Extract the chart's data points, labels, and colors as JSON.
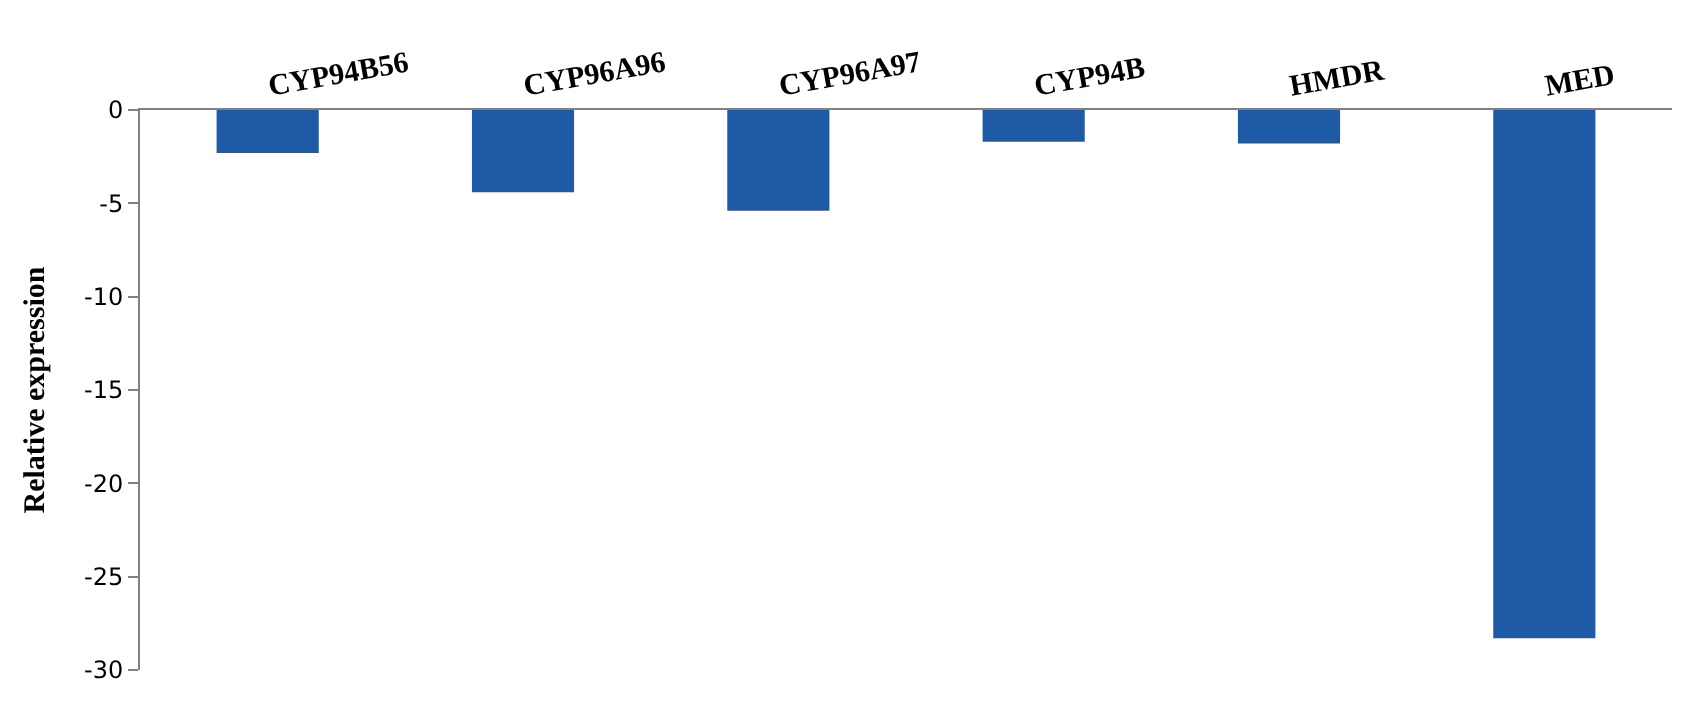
{
  "chart_data": {
    "type": "bar",
    "ylabel": "Relative expression",
    "categories": [
      "CYP94B56",
      "CYP96A96",
      "CYP96A97",
      "CYP94B",
      "HMDR",
      "MED"
    ],
    "values": [
      -2.3,
      -4.4,
      -5.4,
      -1.7,
      -1.8,
      -28.3
    ],
    "color": "#1f5aa6",
    "ylim": [
      -30,
      0
    ],
    "yticks": [
      -30,
      -25,
      -20,
      -15,
      -10,
      -5,
      0
    ]
  }
}
